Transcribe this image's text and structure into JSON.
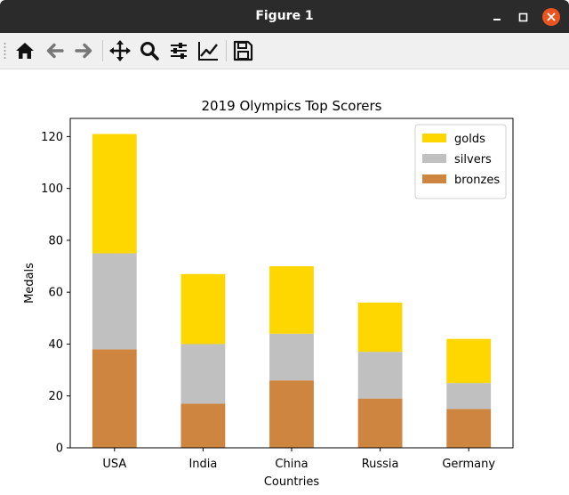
{
  "window": {
    "title": "Figure 1"
  },
  "title_controls": [
    {
      "name": "minimize-button",
      "icon": "minimize-icon"
    },
    {
      "name": "maximize-button",
      "icon": "maximize-icon"
    },
    {
      "name": "close-button",
      "icon": "close-icon"
    }
  ],
  "toolbar": {
    "buttons": [
      {
        "name": "home-button",
        "icon": "home-icon"
      },
      {
        "name": "back-button",
        "icon": "arrow-left-icon"
      },
      {
        "name": "forward-button",
        "icon": "arrow-right-icon"
      },
      {
        "name": "pan-button",
        "icon": "move-icon"
      },
      {
        "name": "zoom-button",
        "icon": "magnifier-icon"
      },
      {
        "name": "configure-subplots-button",
        "icon": "sliders-icon"
      },
      {
        "name": "edit-axis-button",
        "icon": "line-chart-icon"
      },
      {
        "name": "save-button",
        "icon": "floppy-disk-icon"
      }
    ]
  },
  "colors": {
    "titlebar": "#2b2b2b",
    "close": "#e95420",
    "gold": "#ffd700",
    "silver": "#c0c0c0",
    "bronze": "#cd853f"
  },
  "chart_data": {
    "type": "bar",
    "stacked": true,
    "title": "2019 Olympics Top Scorers",
    "xlabel": "Countries",
    "ylabel": "Medals",
    "categories": [
      "USA",
      "India",
      "China",
      "Russia",
      "Germany"
    ],
    "series": [
      {
        "name": "bronzes",
        "color": "#cd853f",
        "values": [
          38,
          17,
          26,
          19,
          15
        ]
      },
      {
        "name": "silvers",
        "color": "#c0c0c0",
        "values": [
          37,
          23,
          18,
          18,
          10
        ]
      },
      {
        "name": "golds",
        "color": "#ffd700",
        "values": [
          46,
          27,
          26,
          19,
          17
        ]
      }
    ],
    "legend_order": [
      "golds",
      "silvers",
      "bronzes"
    ],
    "ylim": [
      0,
      127
    ],
    "yticks": [
      0,
      20,
      40,
      60,
      80,
      100,
      120
    ],
    "legend_position": "top-right",
    "grid": false
  }
}
